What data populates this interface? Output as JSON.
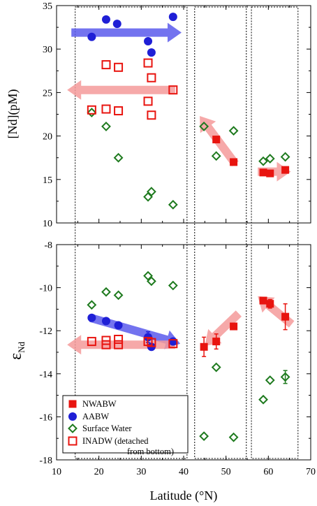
{
  "chart_data": [
    {
      "type": "scatter",
      "panel": "top",
      "ylabel": "[Nd](pM)",
      "xlim": [
        10,
        70
      ],
      "ylim": [
        10,
        35
      ],
      "yticks": [
        10,
        15,
        20,
        25,
        30,
        35
      ],
      "series": [
        {
          "name": "NWABW",
          "marker": "filled-square",
          "color": "#e8140f",
          "points": [
            [
              47.7,
              19.6
            ],
            [
              51.8,
              17.0
            ],
            [
              58.8,
              15.8
            ],
            [
              60.4,
              15.7
            ],
            [
              64.0,
              16.1
            ]
          ]
        },
        {
          "name": "AABW",
          "marker": "filled-circle",
          "color": "#1f1fd6",
          "points": [
            [
              18.3,
              31.4
            ],
            [
              21.7,
              33.4
            ],
            [
              24.3,
              32.9
            ],
            [
              31.6,
              30.9
            ],
            [
              32.4,
              29.6
            ],
            [
              37.5,
              33.7
            ]
          ]
        },
        {
          "name": "Surface Water",
          "marker": "open-diamond",
          "color": "#1e7a1e",
          "points": [
            [
              18.3,
              22.7
            ],
            [
              21.7,
              21.1
            ],
            [
              24.6,
              17.5
            ],
            [
              31.6,
              13.0
            ],
            [
              32.4,
              13.6
            ],
            [
              37.5,
              12.1
            ],
            [
              44.8,
              21.1
            ],
            [
              47.7,
              17.7
            ],
            [
              51.8,
              20.6
            ],
            [
              58.8,
              17.1
            ],
            [
              60.4,
              17.4
            ],
            [
              64.0,
              17.6
            ]
          ]
        },
        {
          "name": "INADW (detached from bottom)",
          "marker": "open-square",
          "color": "#e8140f",
          "points": [
            [
              18.3,
              23.0
            ],
            [
              21.7,
              28.2
            ],
            [
              21.7,
              23.1
            ],
            [
              24.6,
              27.9
            ],
            [
              24.6,
              22.9
            ],
            [
              31.6,
              28.4
            ],
            [
              31.6,
              24.0
            ],
            [
              32.4,
              26.7
            ],
            [
              32.4,
              22.4
            ],
            [
              37.5,
              25.3
            ]
          ]
        }
      ],
      "arrows": [
        {
          "color": "#5b5bec",
          "from": [
            13.5,
            31.9
          ],
          "to": [
            39.5,
            31.9
          ]
        },
        {
          "color": "#f59a9a",
          "from": [
            38.0,
            25.3
          ],
          "to": [
            12.5,
            25.3
          ]
        },
        {
          "color": "#f59a9a",
          "from": [
            52.2,
            16.8
          ],
          "to": [
            43.8,
            22.3
          ]
        },
        {
          "color": "#f59a9a",
          "from": [
            57.5,
            15.9
          ],
          "to": [
            65.3,
            15.9
          ]
        }
      ]
    },
    {
      "type": "scatter",
      "panel": "bottom",
      "xlabel": "Latitude (°N)",
      "ylabel": "ε",
      "ylabel_sub": "Nd",
      "xlim": [
        10,
        70
      ],
      "ylim": [
        -18,
        -8
      ],
      "xticks": [
        10,
        20,
        30,
        40,
        50,
        60,
        70
      ],
      "yticks": [
        -18,
        -16,
        -14,
        -12,
        -10,
        -8
      ],
      "series": [
        {
          "name": "NWABW",
          "marker": "filled-square",
          "color": "#e8140f",
          "points": [
            [
              44.8,
              -12.75,
              0.45
            ],
            [
              47.7,
              -12.5,
              0.35
            ],
            [
              51.8,
              -11.8,
              0
            ],
            [
              58.8,
              -10.6,
              0
            ],
            [
              60.4,
              -10.75,
              0.2
            ],
            [
              64.0,
              -11.35,
              0.6
            ]
          ]
        },
        {
          "name": "AABW",
          "marker": "filled-circle",
          "color": "#1f1fd6",
          "points": [
            [
              18.3,
              -11.4,
              0
            ],
            [
              21.7,
              -11.55,
              0
            ],
            [
              24.6,
              -11.75,
              0
            ],
            [
              31.6,
              -12.3,
              0.25
            ],
            [
              32.4,
              -12.75,
              0
            ],
            [
              37.5,
              -12.5,
              0
            ]
          ]
        },
        {
          "name": "Surface Water",
          "marker": "open-diamond",
          "color": "#1e7a1e",
          "points": [
            [
              18.3,
              -10.8,
              0
            ],
            [
              21.7,
              -10.2,
              0
            ],
            [
              24.6,
              -10.35,
              0
            ],
            [
              31.6,
              -9.45,
              0
            ],
            [
              32.4,
              -9.7,
              0
            ],
            [
              37.5,
              -9.9,
              0
            ],
            [
              44.8,
              -16.9,
              0
            ],
            [
              47.7,
              -13.7,
              0
            ],
            [
              51.8,
              -16.95,
              0
            ],
            [
              58.8,
              -15.2,
              0
            ],
            [
              60.4,
              -14.3,
              0
            ],
            [
              64.0,
              -14.15,
              0.3
            ]
          ]
        },
        {
          "name": "INADW (detached from bottom)",
          "marker": "open-square",
          "color": "#e8140f",
          "points": [
            [
              18.3,
              -12.5,
              0
            ],
            [
              21.7,
              -12.45,
              0
            ],
            [
              21.7,
              -12.65,
              0
            ],
            [
              24.6,
              -12.4,
              0
            ],
            [
              24.6,
              -12.65,
              0
            ],
            [
              31.6,
              -12.5,
              0
            ],
            [
              32.4,
              -12.55,
              0
            ],
            [
              37.5,
              -12.6,
              0
            ]
          ]
        }
      ],
      "arrows": [
        {
          "color": "#5b5bec",
          "from": [
            18.0,
            -11.4
          ],
          "to": [
            39.2,
            -12.6
          ]
        },
        {
          "color": "#f59a9a",
          "from": [
            38.0,
            -12.65
          ],
          "to": [
            12.5,
            -12.65
          ]
        },
        {
          "color": "#f59a9a",
          "from": [
            53.0,
            -11.2
          ],
          "to": [
            45.0,
            -12.7
          ]
        },
        {
          "color": "#f59a9a",
          "from": [
            65.5,
            -11.7
          ],
          "to": [
            57.5,
            -10.4
          ]
        }
      ]
    }
  ],
  "regions": [
    [
      14.4,
      40.8
    ],
    [
      42.6,
      54.8
    ],
    [
      56.0,
      67.0
    ]
  ],
  "legend": {
    "placement": "bottom-left",
    "entries": [
      {
        "label": "NWABW",
        "marker": "filled-square",
        "color": "#e8140f"
      },
      {
        "label": "AABW",
        "marker": "filled-circle",
        "color": "#1f1fd6"
      },
      {
        "label": "Surface Water",
        "marker": "open-diamond",
        "color": "#1e7a1e"
      },
      {
        "label": "INADW (detached",
        "label_line2": "from bottom)",
        "marker": "open-square",
        "color": "#e8140f"
      }
    ]
  }
}
